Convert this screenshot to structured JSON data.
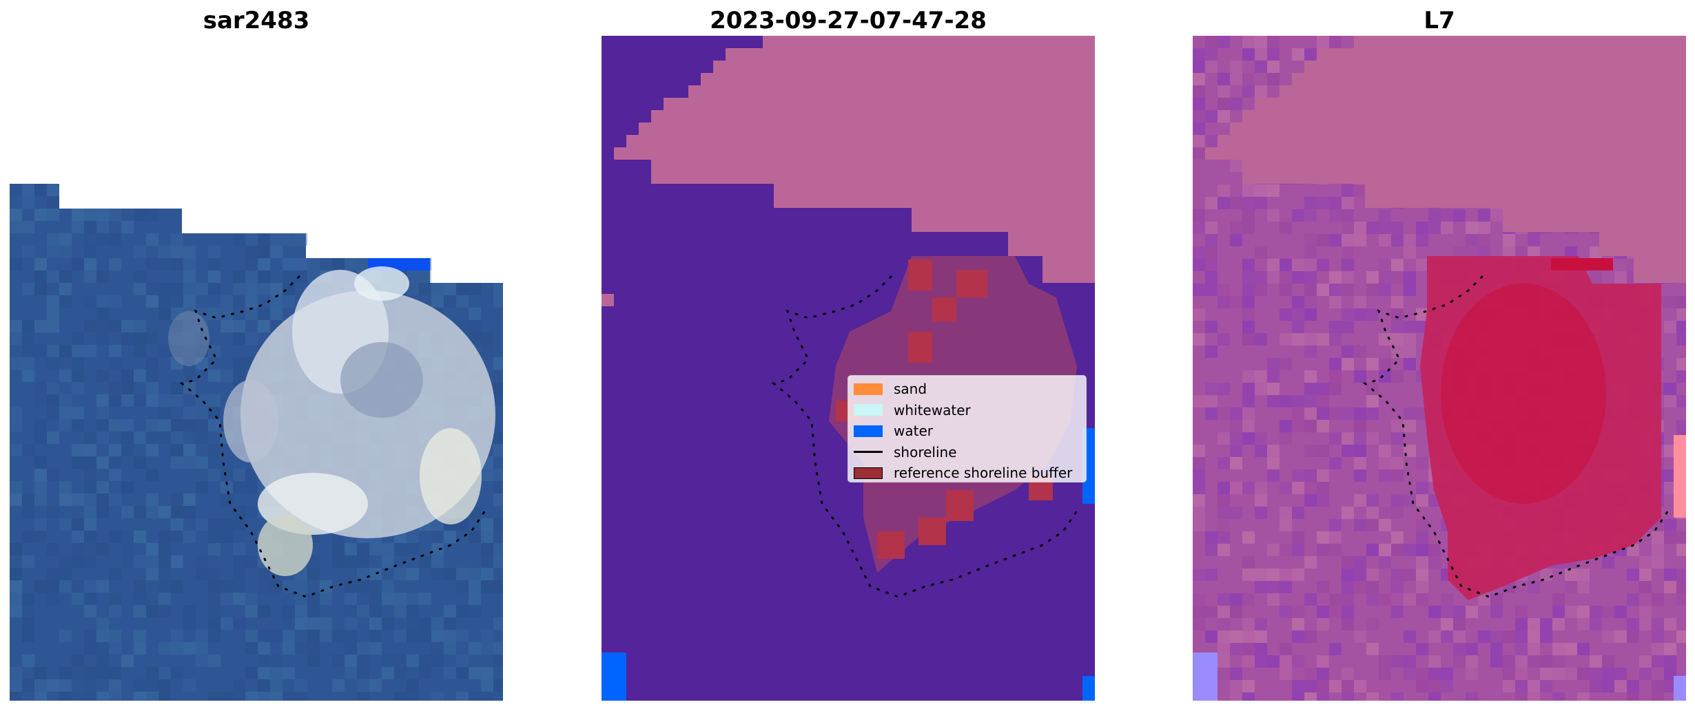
{
  "panels": [
    {
      "id": "rgb",
      "title": "sar2483",
      "content": "satellite-rgb"
    },
    {
      "id": "classification",
      "title": "2023-09-27-07-47-28",
      "content": "classification"
    },
    {
      "id": "index",
      "title": "L7",
      "content": "index"
    }
  ],
  "legend": {
    "items": [
      {
        "label": "sand",
        "kind": "patch",
        "color": "#ff8c3a"
      },
      {
        "label": "whitewater",
        "kind": "patch",
        "color": "#c9f7f7"
      },
      {
        "label": "water",
        "kind": "patch",
        "color": "#0064ff"
      },
      {
        "label": "shoreline",
        "kind": "line",
        "color": "#000000"
      },
      {
        "label": "reference shoreline buffer",
        "kind": "patch",
        "color": "#9b2d34"
      }
    ]
  },
  "colors": {
    "ocean_rgb": "#2f5694",
    "whitewater_rgb": "#d6dde8",
    "mask_pink": "#bb6699",
    "water_class": "#53249a",
    "buffer_class": "#b14060",
    "index_base": "#b45ba2",
    "index_high": "#c8103f",
    "bright_blue": "#0a4ff0",
    "shoreline_dots": "#000000"
  }
}
